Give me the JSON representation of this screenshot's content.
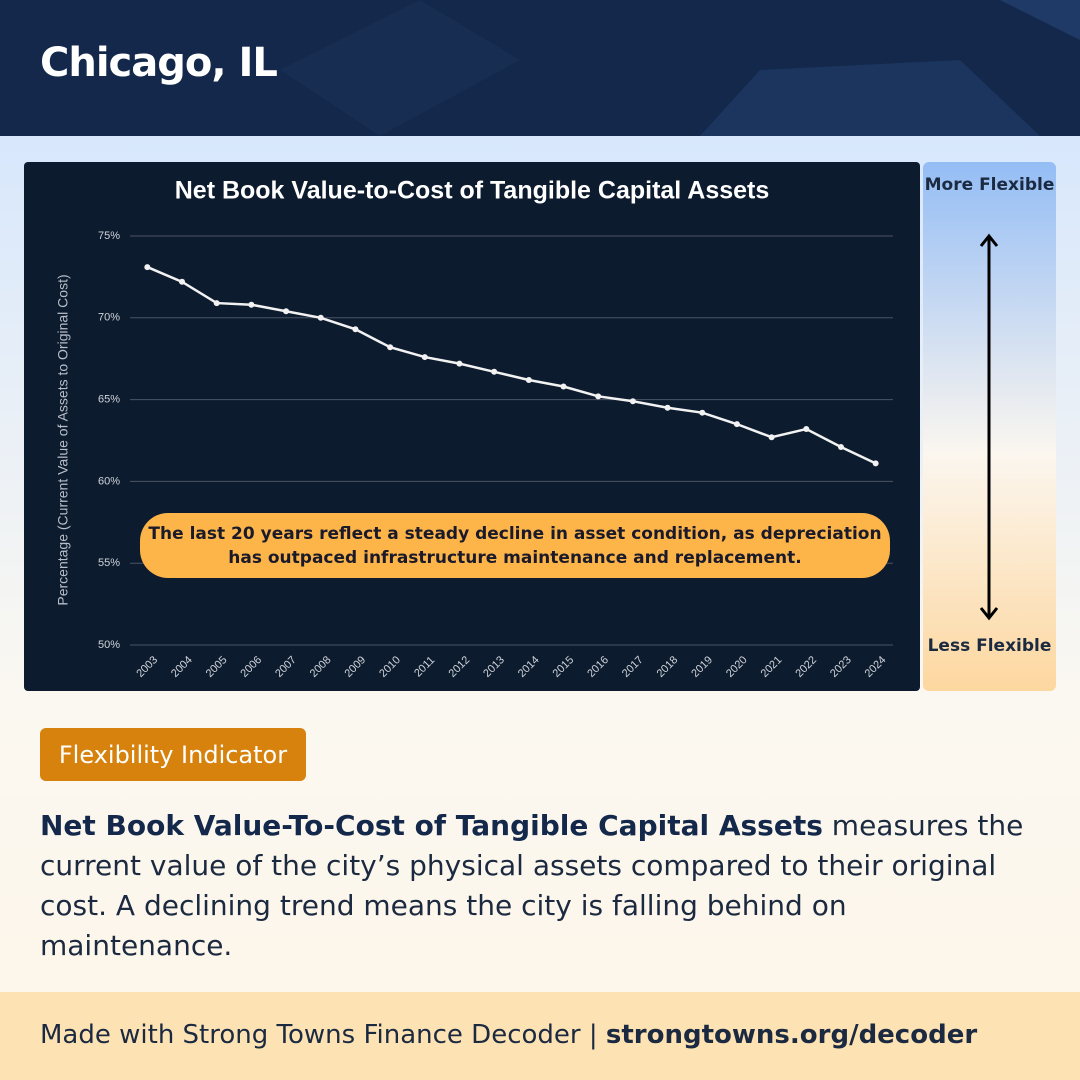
{
  "header": {
    "title": "Chicago, IL"
  },
  "chart_data": {
    "type": "line",
    "title": "Net Book Value-to-Cost of Tangible Capital Assets",
    "y_label": "Percentage (Current Value of Assets to Original Cost)",
    "categories": [
      "2003",
      "2004",
      "2005",
      "2006",
      "2007",
      "2008",
      "2009",
      "2010",
      "2011",
      "2012",
      "2013",
      "2014",
      "2015",
      "2016",
      "2017",
      "2018",
      "2019",
      "2020",
      "2021",
      "2022",
      "2023",
      "2024"
    ],
    "values": [
      73.1,
      72.2,
      70.9,
      70.8,
      70.4,
      70.0,
      69.3,
      68.2,
      67.6,
      67.2,
      66.7,
      66.2,
      65.8,
      65.2,
      64.9,
      64.5,
      64.2,
      63.5,
      62.7,
      63.2,
      62.1,
      61.1
    ],
    "color": "#f2f2f2",
    "ylim": [
      50,
      75
    ],
    "yticks": [
      {
        "value": 50,
        "label": "50%"
      },
      {
        "value": 55,
        "label": "55%"
      },
      {
        "value": 60,
        "label": "60%"
      },
      {
        "value": 65,
        "label": "65%"
      },
      {
        "value": 70,
        "label": "70%"
      },
      {
        "value": 75,
        "label": "75%"
      }
    ],
    "grid": true,
    "annotation": "The last 20 years reflect a steady decline in asset condition, as depreciation has outpaced infrastructure maintenance and replacement."
  },
  "scale": {
    "top": "More Flexible",
    "bottom": "Less Flexible"
  },
  "badge": "Flexibility Indicator",
  "description": {
    "bold": "Net Book Value-To-Cost of Tangible Capital Assets",
    "text": " measures the current value of the city’s physical assets compared to their original cost. A declining trend means the city is falling behind on maintenance."
  },
  "footer": {
    "text": "Made with Strong Towns Finance Decoder | ",
    "link": "strongtowns.org/decoder"
  }
}
